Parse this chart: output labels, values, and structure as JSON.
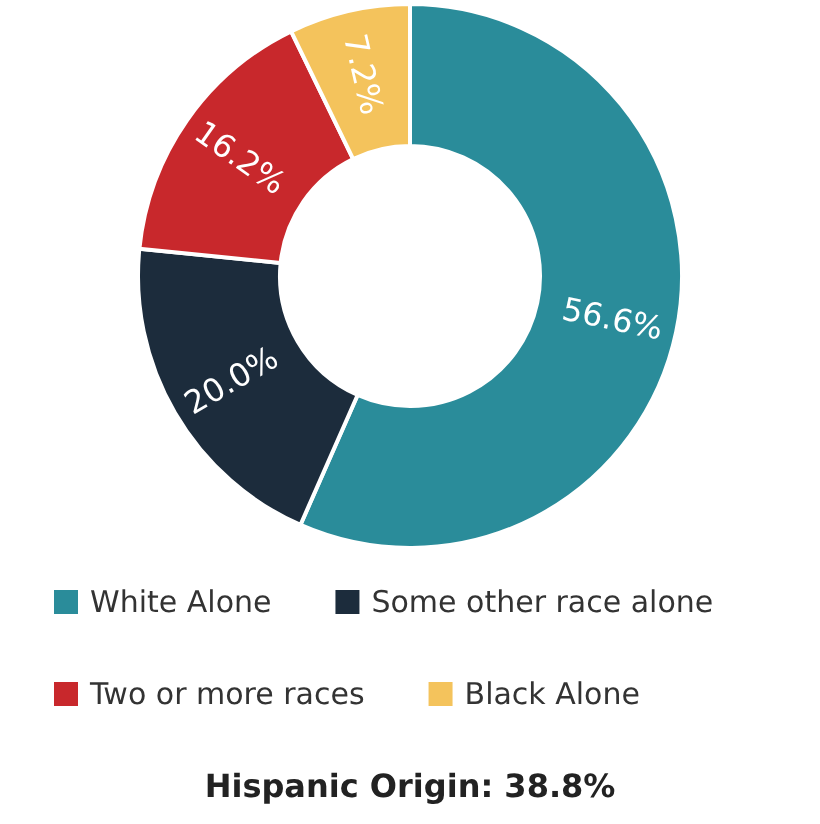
{
  "chart_data": {
    "type": "donut",
    "categories": [
      "White Alone",
      "Some other race alone",
      "Two or more races",
      "Black Alone"
    ],
    "values": [
      56.6,
      20.0,
      16.2,
      7.2
    ],
    "colors": [
      "#2a8c9a",
      "#1c2c3c",
      "#c8282c",
      "#f4c35c"
    ],
    "value_labels": [
      "56.6%",
      "20.0%",
      "16.2%",
      "7.2%"
    ],
    "legend": "bottom",
    "annotations": [
      "Hispanic Origin: 38.8%"
    ]
  }
}
